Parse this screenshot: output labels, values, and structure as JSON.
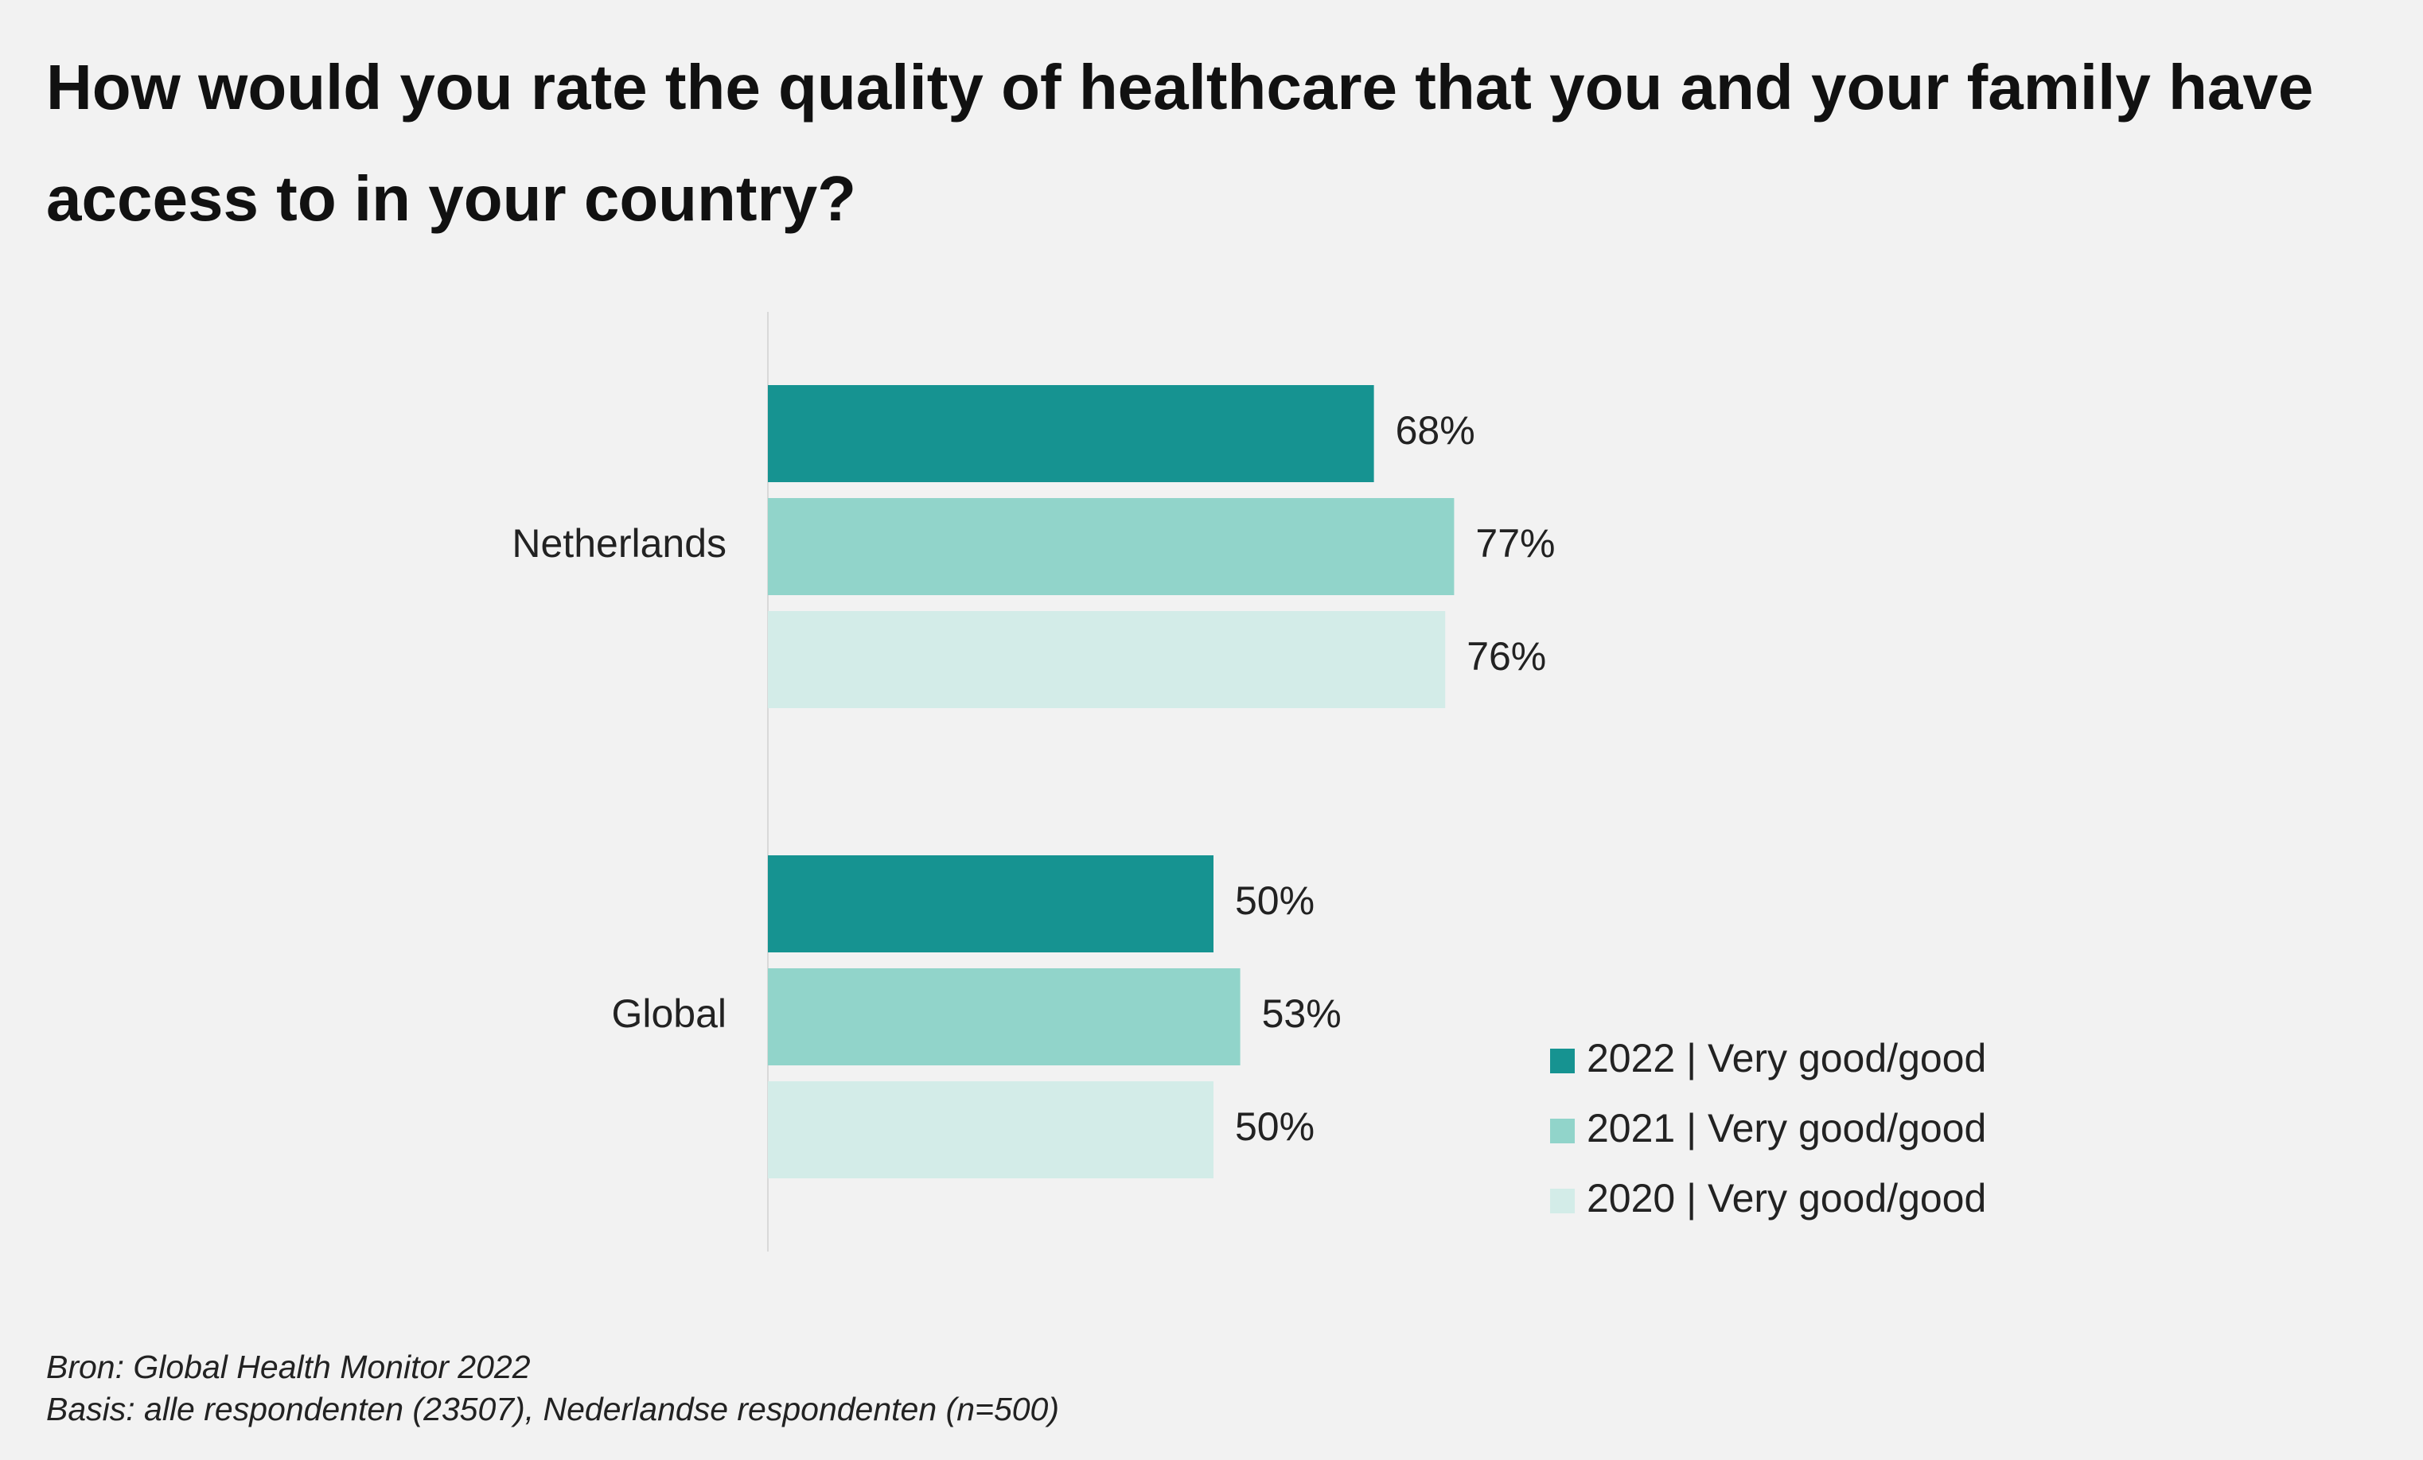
{
  "chart_data": {
    "type": "hbar",
    "title": "How would you rate the quality of healthcare that you and your family have access to in your country?",
    "categories": [
      "Netherlands",
      "Global"
    ],
    "series": [
      {
        "name": "2022 | Very good/good",
        "color": "#169391",
        "values": [
          68,
          50
        ],
        "value_labels": [
          "68%",
          "50%"
        ]
      },
      {
        "name": "2021 | Very good/good",
        "color": "#91d4ca",
        "values": [
          77,
          53
        ],
        "value_labels": [
          "77%",
          "53%"
        ]
      },
      {
        "name": "2020 | Very good/good",
        "color": "#d3ece8",
        "values": [
          76,
          50
        ],
        "value_labels": [
          "76%",
          "50%"
        ]
      }
    ],
    "xlim": [
      0,
      100
    ],
    "legend": "lower right",
    "footnotes": [
      "Bron: Global Health Monitor 2022",
      "Basis: alle respondenten (23507), Nederlandse respondenten (n=500)"
    ]
  }
}
